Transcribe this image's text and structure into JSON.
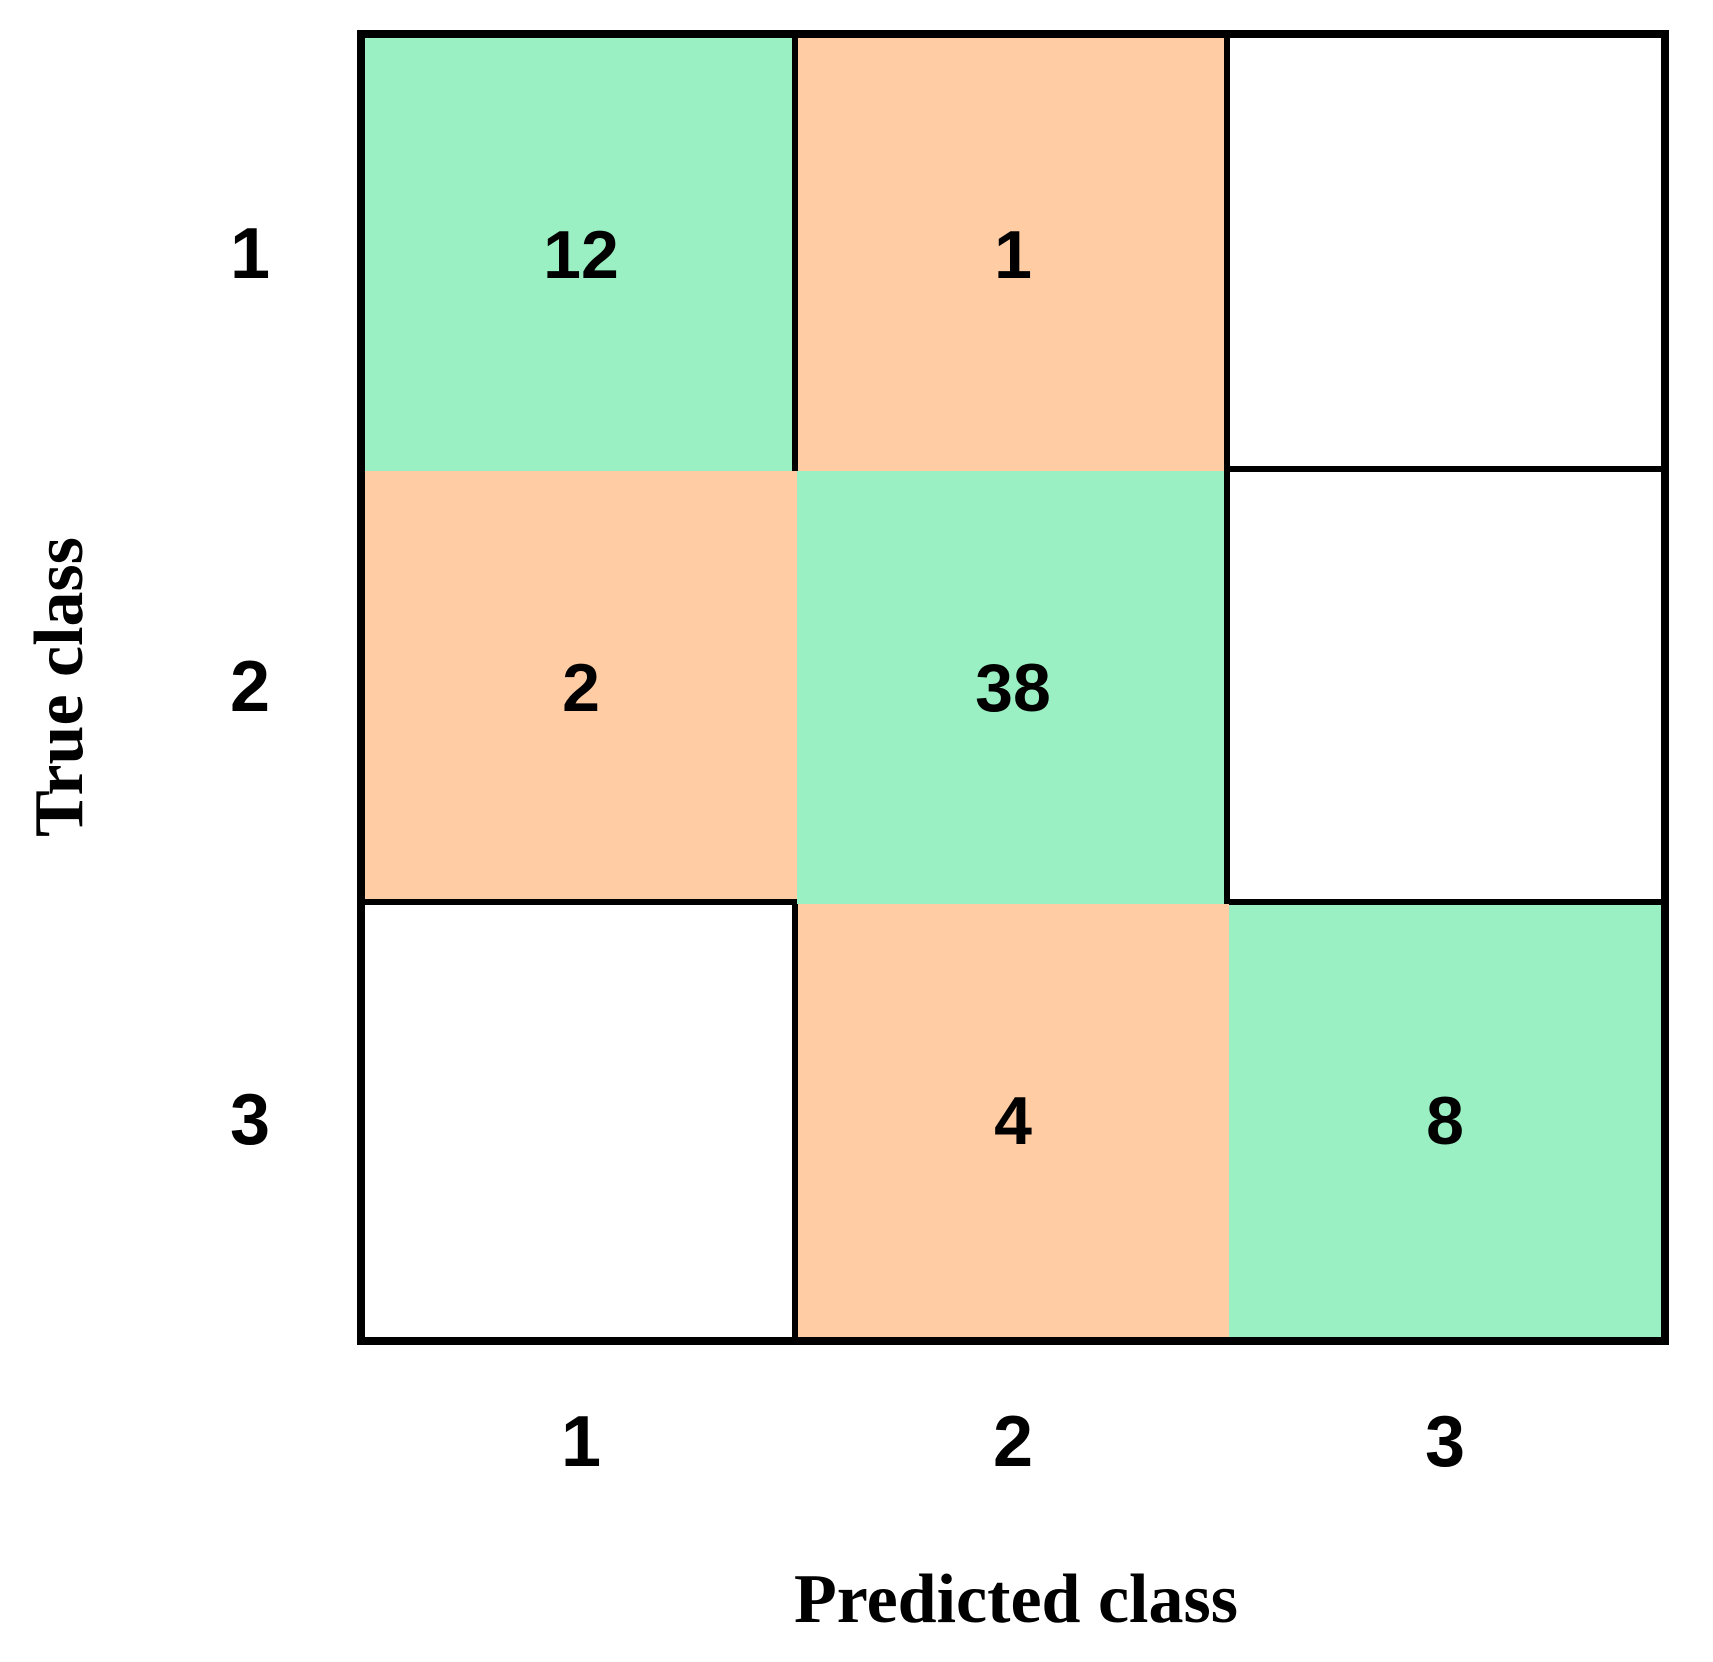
{
  "chart_data": {
    "type": "heatmap",
    "subtype": "confusion-matrix",
    "xlabel": "Predicted class",
    "ylabel": "True class",
    "x_tick_labels": [
      "1",
      "2",
      "3"
    ],
    "y_tick_labels": [
      "1",
      "2",
      "3"
    ],
    "matrix": [
      [
        12,
        1,
        null
      ],
      [
        2,
        38,
        null
      ],
      [
        null,
        4,
        8
      ]
    ],
    "cells": [
      {
        "row": 1,
        "col": 1,
        "label": "12",
        "kind": "correct"
      },
      {
        "row": 1,
        "col": 2,
        "label": "1",
        "kind": "incorrect"
      },
      {
        "row": 1,
        "col": 3,
        "label": "",
        "kind": "empty"
      },
      {
        "row": 2,
        "col": 1,
        "label": "2",
        "kind": "incorrect"
      },
      {
        "row": 2,
        "col": 2,
        "label": "38",
        "kind": "correct"
      },
      {
        "row": 2,
        "col": 3,
        "label": "",
        "kind": "empty"
      },
      {
        "row": 3,
        "col": 1,
        "label": "",
        "kind": "empty"
      },
      {
        "row": 3,
        "col": 2,
        "label": "4",
        "kind": "incorrect"
      },
      {
        "row": 3,
        "col": 3,
        "label": "8",
        "kind": "correct"
      }
    ],
    "colors": {
      "correct": "#9AEFC3",
      "incorrect": "#FFCCA4",
      "empty": "#FFFFFF",
      "grid_line": "#000000",
      "text": "#000000",
      "background": "#FFFFFF"
    },
    "legend": "none"
  }
}
